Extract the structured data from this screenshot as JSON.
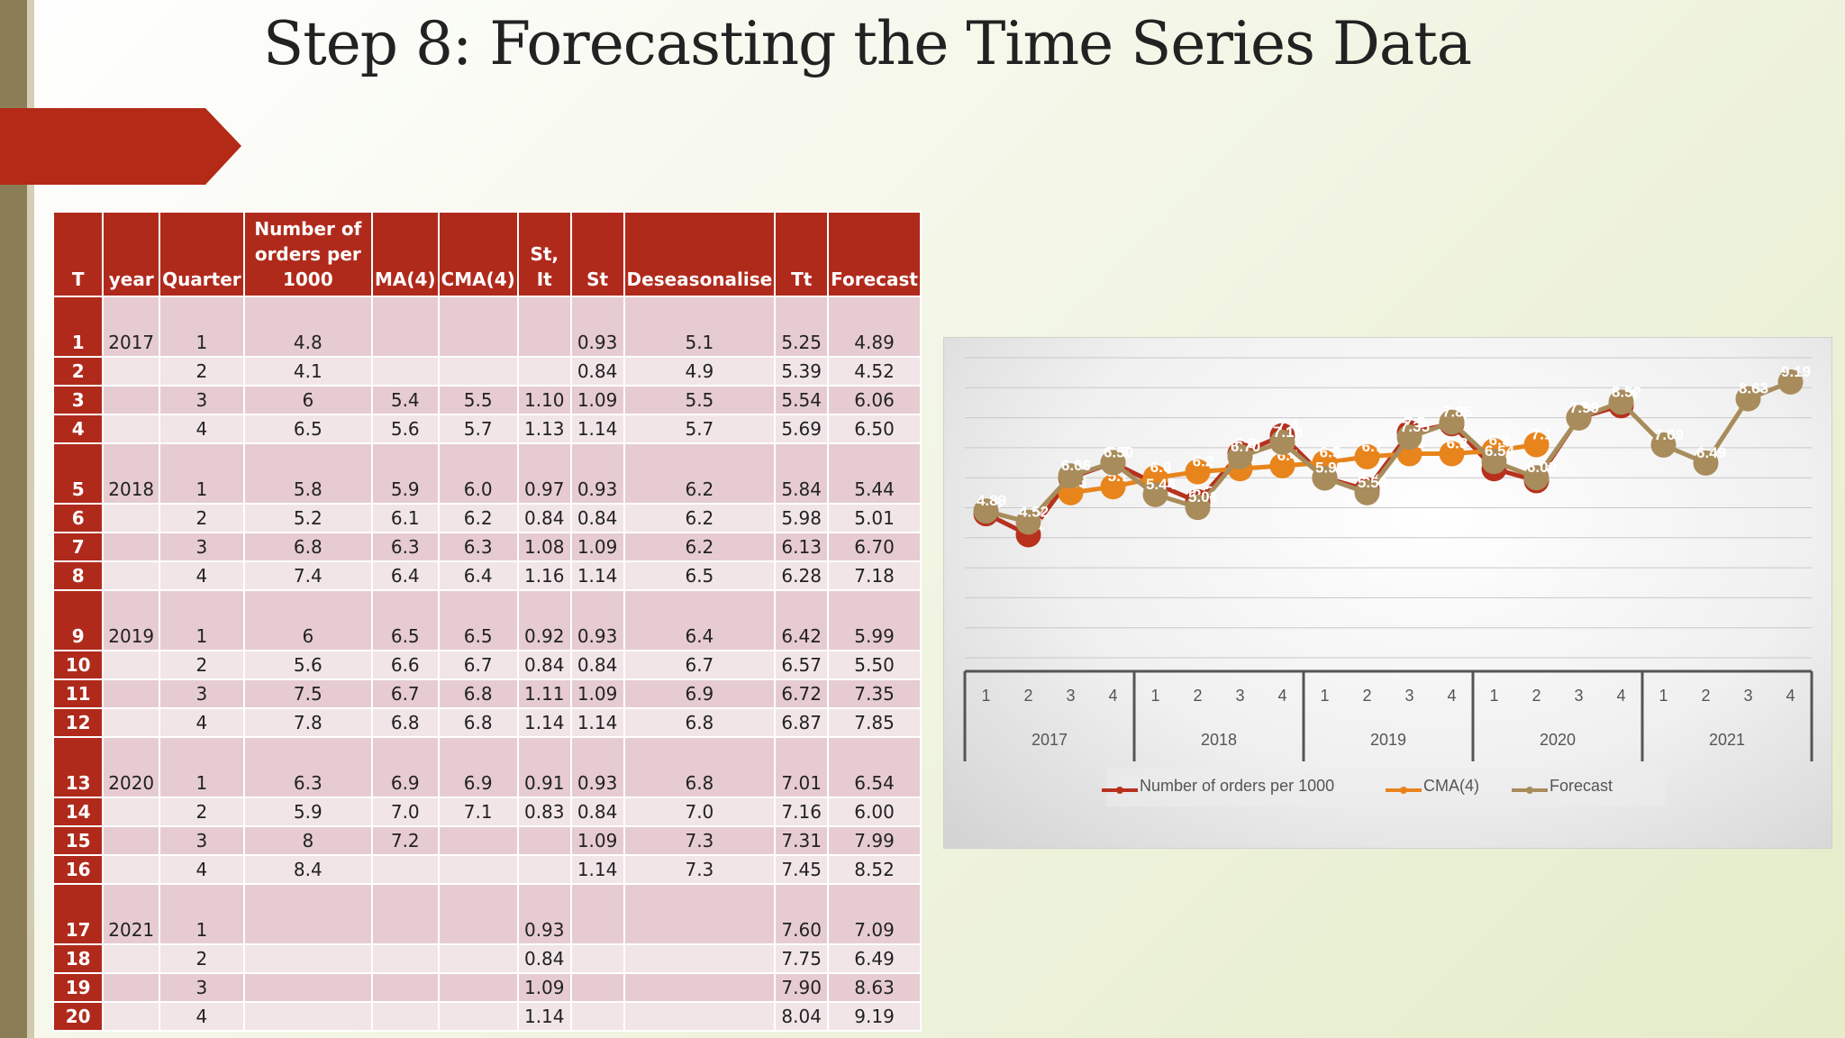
{
  "title": "Step 8: Forecasting the Time Series Data",
  "table": {
    "headers": [
      "T",
      "year",
      "Quarter",
      "Number of orders per 1000",
      "MA(4)",
      "CMA(4)",
      "St, It",
      "St",
      "Deseasonalise",
      "Tt",
      "Forecast"
    ],
    "rows": [
      [
        "1",
        "2017",
        "1",
        "4.8",
        "",
        "",
        "",
        "0.93",
        "5.1",
        "5.25",
        "4.89"
      ],
      [
        "2",
        "",
        "2",
        "4.1",
        "",
        "",
        "",
        "0.84",
        "4.9",
        "5.39",
        "4.52"
      ],
      [
        "3",
        "",
        "3",
        "6",
        "5.4",
        "5.5",
        "1.10",
        "1.09",
        "5.5",
        "5.54",
        "6.06"
      ],
      [
        "4",
        "",
        "4",
        "6.5",
        "5.6",
        "5.7",
        "1.13",
        "1.14",
        "5.7",
        "5.69",
        "6.50"
      ],
      [
        "5",
        "2018",
        "1",
        "5.8",
        "5.9",
        "6.0",
        "0.97",
        "0.93",
        "6.2",
        "5.84",
        "5.44"
      ],
      [
        "6",
        "",
        "2",
        "5.2",
        "6.1",
        "6.2",
        "0.84",
        "0.84",
        "6.2",
        "5.98",
        "5.01"
      ],
      [
        "7",
        "",
        "3",
        "6.8",
        "6.3",
        "6.3",
        "1.08",
        "1.09",
        "6.2",
        "6.13",
        "6.70"
      ],
      [
        "8",
        "",
        "4",
        "7.4",
        "6.4",
        "6.4",
        "1.16",
        "1.14",
        "6.5",
        "6.28",
        "7.18"
      ],
      [
        "9",
        "2019",
        "1",
        "6",
        "6.5",
        "6.5",
        "0.92",
        "0.93",
        "6.4",
        "6.42",
        "5.99"
      ],
      [
        "10",
        "",
        "2",
        "5.6",
        "6.6",
        "6.7",
        "0.84",
        "0.84",
        "6.7",
        "6.57",
        "5.50"
      ],
      [
        "11",
        "",
        "3",
        "7.5",
        "6.7",
        "6.8",
        "1.11",
        "1.09",
        "6.9",
        "6.72",
        "7.35"
      ],
      [
        "12",
        "",
        "4",
        "7.8",
        "6.8",
        "6.8",
        "1.14",
        "1.14",
        "6.8",
        "6.87",
        "7.85"
      ],
      [
        "13",
        "2020",
        "1",
        "6.3",
        "6.9",
        "6.9",
        "0.91",
        "0.93",
        "6.8",
        "7.01",
        "6.54"
      ],
      [
        "14",
        "",
        "2",
        "5.9",
        "7.0",
        "7.1",
        "0.83",
        "0.84",
        "7.0",
        "7.16",
        "6.00"
      ],
      [
        "15",
        "",
        "3",
        "8",
        "7.2",
        "",
        "",
        "1.09",
        "7.3",
        "7.31",
        "7.99"
      ],
      [
        "16",
        "",
        "4",
        "8.4",
        "",
        "",
        "",
        "1.14",
        "7.3",
        "7.45",
        "8.52"
      ],
      [
        "17",
        "2021",
        "1",
        "",
        "",
        "",
        "0.93",
        "",
        "",
        "7.60",
        "7.09"
      ],
      [
        "18",
        "",
        "2",
        "",
        "",
        "",
        "0.84",
        "",
        "",
        "7.75",
        "6.49"
      ],
      [
        "19",
        "",
        "3",
        "",
        "",
        "",
        "1.09",
        "",
        "",
        "7.90",
        "8.63"
      ],
      [
        "20",
        "",
        "4",
        "",
        "",
        "",
        "1.14",
        "",
        "",
        "8.04",
        "9.19"
      ]
    ]
  },
  "chart_data": {
    "type": "line",
    "x_quarters": [
      "1",
      "2",
      "3",
      "4",
      "1",
      "2",
      "3",
      "4",
      "1",
      "2",
      "3",
      "4",
      "1",
      "2",
      "3",
      "4",
      "1",
      "2",
      "3",
      "4"
    ],
    "x_years": [
      "2017",
      "2018",
      "2019",
      "2020",
      "2021"
    ],
    "ylim": [
      0,
      10
    ],
    "series": [
      {
        "name": "Number of orders per 1000",
        "color": "#b7311d",
        "values": [
          4.8,
          4.1,
          6,
          6.5,
          5.8,
          5.2,
          6.8,
          7.4,
          6,
          5.6,
          7.5,
          7.8,
          6.3,
          5.9,
          8,
          8.4,
          null,
          null,
          null,
          null
        ],
        "labels": [
          "4.8",
          "4.1",
          "6",
          "6.5",
          "5.8",
          "5.2",
          "6.8",
          "7.4",
          "6",
          "5.6",
          "7.5",
          "7.8",
          "6.3",
          "5.9",
          "8",
          "8.4",
          null,
          null,
          null,
          null
        ]
      },
      {
        "name": "CMA(4)",
        "color": "#e8841c",
        "values": [
          null,
          null,
          5.5,
          5.7,
          6.0,
          6.2,
          6.3,
          6.4,
          6.5,
          6.7,
          6.8,
          6.8,
          6.9,
          7.1,
          null,
          null,
          null,
          null,
          null,
          null
        ],
        "labels": [
          null,
          null,
          "5.5",
          "5.7",
          "6.0",
          "6.2",
          "6.3",
          "6.4",
          "6.5",
          "6.7",
          "6.8",
          "6.8",
          "6.9",
          "7.1",
          null,
          null,
          null,
          null,
          null,
          null
        ]
      },
      {
        "name": "Forecast",
        "color": "#a88c5c",
        "values": [
          4.89,
          4.52,
          6.06,
          6.5,
          5.44,
          5.01,
          6.7,
          7.18,
          5.99,
          5.5,
          7.35,
          7.85,
          6.54,
          6.0,
          7.99,
          8.52,
          7.09,
          6.49,
          8.63,
          9.19
        ],
        "labels": [
          "4.89",
          "4.52",
          "6.06",
          "6.50",
          "5.44",
          "5.01",
          "6.70",
          "7.18",
          "5.99",
          "5.50",
          "7.35",
          "7.85",
          "6.54",
          "6.00",
          "7.99",
          "8.52",
          "7.09",
          "6.49",
          "8.63",
          "9.19"
        ]
      }
    ]
  }
}
